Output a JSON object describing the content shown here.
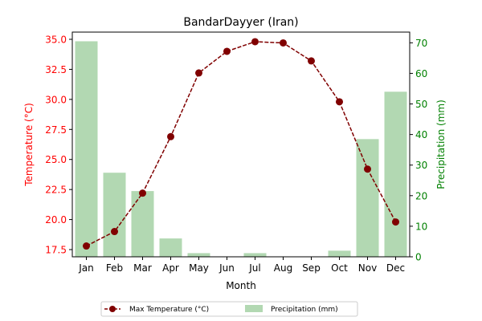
{
  "chart_data": {
    "type": "bar+line",
    "title": "BandarDayyer (Iran)",
    "xlabel": "Month",
    "categories": [
      "Jan",
      "Feb",
      "Mar",
      "Apr",
      "May",
      "Jun",
      "Jul",
      "Aug",
      "Sep",
      "Oct",
      "Nov",
      "Dec"
    ],
    "y_left": {
      "label": "Temperature (°C)",
      "range": [
        16.9,
        35.6
      ],
      "ticks": [
        "17.5",
        "20.0",
        "22.5",
        "25.0",
        "27.5",
        "30.0",
        "32.5",
        "35.0"
      ],
      "color": "#ff0000"
    },
    "y_right": {
      "label": "Precipitation (mm)",
      "range": [
        0,
        73.5
      ],
      "ticks": [
        "0",
        "10",
        "20",
        "30",
        "40",
        "50",
        "60",
        "70"
      ],
      "color": "#008000"
    },
    "series": [
      {
        "name": "Max Temperature (°C)",
        "kind": "line",
        "axis": "left",
        "color": "#800000",
        "values": [
          17.8,
          19.0,
          22.2,
          26.9,
          32.2,
          34.0,
          34.8,
          34.7,
          33.2,
          29.8,
          24.2,
          19.8
        ]
      },
      {
        "name": "Precipitation (mm)",
        "kind": "bar",
        "axis": "right",
        "color": "#b2d8b2",
        "values": [
          70.5,
          27.5,
          21.5,
          6.0,
          1.2,
          0.0,
          1.2,
          0.0,
          0.0,
          2.0,
          38.5,
          54.0
        ]
      }
    ],
    "legend_position": "bottom-center",
    "grid": false
  }
}
